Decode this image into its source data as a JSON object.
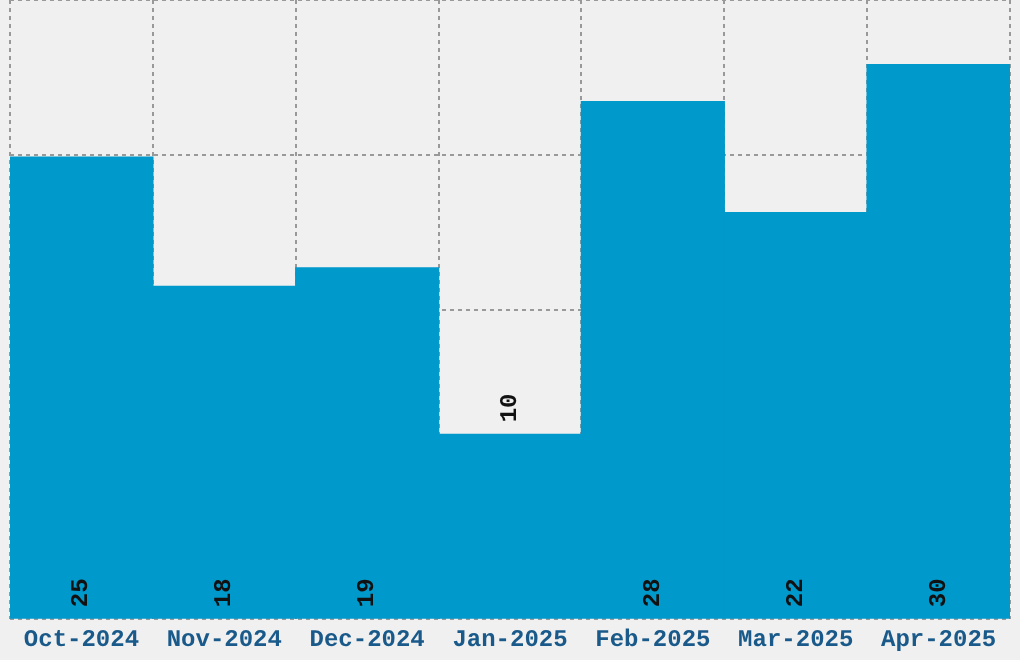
{
  "chart_data": {
    "type": "bar",
    "categories": [
      "Oct-2024",
      "Nov-2024",
      "Dec-2024",
      "Jan-2025",
      "Feb-2025",
      "Mar-2025",
      "Apr-2025"
    ],
    "values": [
      25,
      18,
      19,
      10,
      28,
      22,
      30
    ],
    "color": "#0099cc",
    "ylim": [
      0,
      33.5
    ],
    "grid": true,
    "tick_labels": "x",
    "data_labels": true
  }
}
